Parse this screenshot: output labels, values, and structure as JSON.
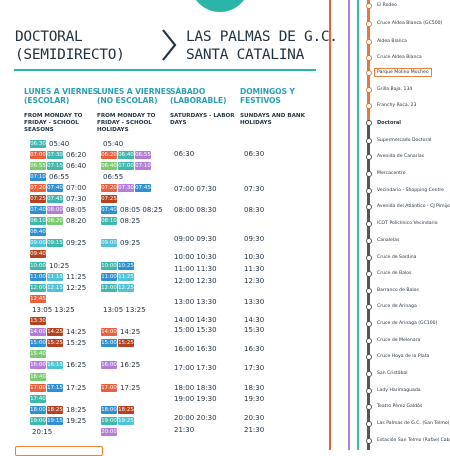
{
  "header": {
    "origin_line1": "DOCTORAL",
    "origin_line2": "(SEMIDIRECTO)",
    "dest_line1": "LAS PALMAS DE G.C.",
    "dest_line2": "SANTA CATALINA"
  },
  "columns": [
    {
      "title1": "LUNES A VIERNES",
      "title2": "(ESCOLAR)",
      "sub1": "FROM MONDAY TO",
      "sub2": "FRIDAY - SCHOOL",
      "sub3": "SEASONS"
    },
    {
      "title1": "LUNES A VIERNES",
      "title2": "(NO ESCOLAR)",
      "sub1": "FROM MONDAY TO",
      "sub2": "FRIDAY - SCHOOL",
      "sub3": "HOLIDAYS"
    },
    {
      "title1": "SÁBADO",
      "title2": "(LABORABLE)",
      "sub1": "SATURDAYS - LABOR",
      "sub2": "DAYS",
      "sub3": ""
    },
    {
      "title1": "DOMINGOS Y",
      "title2": "FESTIVOS",
      "sub1": "SUNDAYS AND BANK",
      "sub2": "HOLIDAYS",
      "sub3": ""
    }
  ],
  "schedule_escolar": [
    {
      "b": [
        [
          "t",
          "06:30"
        ]
      ],
      "time": "05:40"
    },
    {
      "b": [
        [
          "o",
          "07:00"
        ],
        [
          "t",
          "07:30"
        ]
      ],
      "time": "06:20"
    },
    {
      "b": [
        [
          "g",
          "06:55"
        ],
        [
          "t",
          "07:15"
        ]
      ],
      "time": "06:40"
    },
    {
      "b": [
        [
          "b",
          "07:10"
        ]
      ],
      "time": "06:55"
    },
    {
      "b": [
        [
          "o",
          "07:20"
        ],
        [
          "b",
          "07:40"
        ]
      ],
      "time": "07:00"
    },
    {
      "b": [
        [
          "r",
          "07:25"
        ],
        [
          "t",
          "07:45"
        ]
      ],
      "time": "07:30"
    },
    {
      "b": [
        [
          "b",
          "07:40"
        ],
        [
          "p",
          "08:00"
        ]
      ],
      "time": "08:05"
    },
    {
      "b": [
        [
          "t",
          "08:10"
        ],
        [
          "g",
          "08:20"
        ]
      ],
      "time": "08:20"
    },
    {
      "b": [
        [
          "b",
          "08:40"
        ]
      ],
      "time": ""
    },
    {
      "b": [
        [
          "c",
          "09:00"
        ],
        [
          "t",
          "09:15"
        ]
      ],
      "time": "09:25"
    },
    {
      "b": [
        [
          "r",
          "09:40"
        ]
      ],
      "time": ""
    },
    {
      "b": [
        [
          "t",
          "10:00"
        ]
      ],
      "time": "10:25"
    },
    {
      "b": [
        [
          "b",
          "11:00"
        ],
        [
          "c",
          "11:15"
        ]
      ],
      "time": "11:25"
    },
    {
      "b": [
        [
          "t",
          "12:00"
        ],
        [
          "c",
          "12:15"
        ]
      ],
      "time": "12:25"
    },
    {
      "b": [
        [
          "o",
          "12:45"
        ]
      ],
      "time": ""
    },
    {
      "b": [],
      "time": "13:05 13:25"
    },
    {
      "b": [
        [
          "r",
          "13:30"
        ]
      ],
      "time": ""
    },
    {
      "b": [
        [
          "p",
          "14:00"
        ],
        [
          "r",
          "14:25"
        ]
      ],
      "time": "14:25"
    },
    {
      "b": [
        [
          "b",
          "15:00"
        ],
        [
          "r",
          "15:25"
        ]
      ],
      "time": "15:25"
    },
    {
      "b": [
        [
          "g",
          "15:40"
        ]
      ],
      "time": ""
    },
    {
      "b": [
        [
          "p",
          "16:00"
        ],
        [
          "c",
          "16:15"
        ]
      ],
      "time": "16:25"
    },
    {
      "b": [
        [
          "g",
          "16:40"
        ]
      ],
      "time": ""
    },
    {
      "b": [
        [
          "o",
          "17:00"
        ],
        [
          "b",
          "17:15"
        ]
      ],
      "time": "17:25"
    },
    {
      "b": [
        [
          "t",
          "17:40"
        ]
      ],
      "time": ""
    },
    {
      "b": [
        [
          "b",
          "18:00"
        ],
        [
          "r",
          "18:25"
        ]
      ],
      "time": "18:25"
    },
    {
      "b": [
        [
          "t",
          "19:00"
        ],
        [
          "b",
          "19:15"
        ]
      ],
      "time": "19:25"
    },
    {
      "b": [],
      "time": "20:15"
    }
  ],
  "schedule_no_escolar": [
    {
      "b": [],
      "time": "05:40"
    },
    {
      "b": [
        [
          "o",
          "06:20"
        ],
        [
          "t",
          "06:40"
        ],
        [
          "p",
          "06:55"
        ]
      ],
      "time": ""
    },
    {
      "b": [
        [
          "g",
          "06:40"
        ],
        [
          "t",
          "07:00"
        ],
        [
          "p",
          "07:10"
        ]
      ],
      "time": ""
    },
    {
      "b": [],
      "time": "06:55"
    },
    {
      "b": [
        [
          "o",
          "07:20"
        ],
        [
          "p",
          "07:30"
        ],
        [
          "b",
          "07:45"
        ]
      ],
      "time": ""
    },
    {
      "b": [
        [
          "r",
          "07:25"
        ]
      ],
      "time": ""
    },
    {
      "b": [
        [
          "b",
          "07:40"
        ]
      ],
      "time": "08:05 08:25"
    },
    {
      "b": [
        [
          "t",
          "08:10"
        ]
      ],
      "time": "08:25"
    },
    {
      "b": [],
      "time": ""
    },
    {
      "b": [
        [
          "c",
          "09:00"
        ]
      ],
      "time": "09:25"
    },
    {
      "b": [],
      "time": ""
    },
    {
      "b": [
        [
          "t",
          "10:00"
        ],
        [
          "b",
          "10:25"
        ]
      ],
      "time": ""
    },
    {
      "b": [
        [
          "b",
          "11:00"
        ],
        [
          "c",
          "11:25"
        ]
      ],
      "time": ""
    },
    {
      "b": [
        [
          "t",
          "12:00"
        ],
        [
          "c",
          "12:25"
        ]
      ],
      "time": ""
    },
    {
      "b": [],
      "time": ""
    },
    {
      "b": [],
      "time": "13:05 13:25"
    },
    {
      "b": [],
      "time": ""
    },
    {
      "b": [
        [
          "o",
          "14:00"
        ]
      ],
      "time": "14:25"
    },
    {
      "b": [
        [
          "b",
          "15:00"
        ],
        [
          "r",
          "15:25"
        ]
      ],
      "time": ""
    },
    {
      "b": [],
      "time": ""
    },
    {
      "b": [
        [
          "p",
          "16:00"
        ]
      ],
      "time": "16:25"
    },
    {
      "b": [],
      "time": ""
    },
    {
      "b": [
        [
          "o",
          "17:00"
        ]
      ],
      "time": "17:25"
    },
    {
      "b": [],
      "time": ""
    },
    {
      "b": [
        [
          "b",
          "18:00"
        ],
        [
          "r",
          "18:25"
        ]
      ],
      "time": ""
    },
    {
      "b": [
        [
          "t",
          "19:00"
        ],
        [
          "c",
          "19:25"
        ]
      ],
      "time": ""
    },
    {
      "b": [
        [
          "p",
          "20:00"
        ]
      ],
      "time": ""
    }
  ],
  "sabado_times": [
    "06:30",
    "07:00 07:30",
    "08:00 08:30",
    "09:00 09:30",
    "10:00 10:30",
    "11:00 11:30",
    "12:00 12:30",
    "13:00 13:30",
    "14:00 14:30",
    "15:00 15:30",
    "16:00 16:30",
    "17:00 17:30",
    "18:00 18:30",
    "19:00 19:30",
    "20:00 20:30",
    "21:30"
  ],
  "domingo_times": [
    "06:30",
    "07:30",
    "08:30",
    "09:30",
    "10:30",
    "11:30",
    "12:30",
    "13:30",
    "14:30",
    "15:30",
    "16:30",
    "17:30",
    "18:30",
    "19:30",
    "20:30",
    "21:30"
  ],
  "stops": [
    "El Rodeo",
    "Cruce Aldea Blanca (GC500)",
    "Aldea Blanca",
    "Cruce Aldea Blanca",
    "Parque Molino Mocheo",
    "Grilla Baja, 134",
    "Franchy Roca, 23",
    "Doctoral",
    "Supermercado Doctoral",
    "Avenida de Canarias",
    "Mercacentro",
    "Vecindario - Shopping Centre",
    "Avenida del Atlántico - CJ Pimijo",
    "ICOT Policlínico Vecindario",
    "Canalelas",
    "Cruce de Sardina",
    "Cruce de Balos",
    "Barranco de Balos",
    "Cruce de Arinaga",
    "Cruce de Arinaga (GC100)",
    "Cruce de Melenara",
    "Cruce Hoya de la Plata",
    "San Cristóbal",
    "Lady Harimaguada",
    "Teatro Pérez Galdós",
    "Las Palmas de G.C. (San Telmo)",
    "Estación San Telmo (Rafael Cabrera)"
  ],
  "colors": {
    "accent": "#2ab5a8",
    "header_text": "#2e9fb2",
    "line": "#555555",
    "highlight": "#e8803a"
  }
}
